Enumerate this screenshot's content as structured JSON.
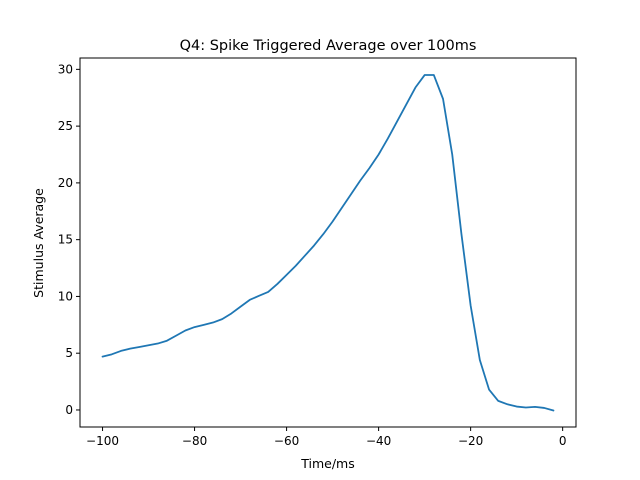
{
  "chart_data": {
    "type": "line",
    "title": "Q4: Spike Triggered Average over 100ms",
    "xlabel": "Time/ms",
    "ylabel": "Stimulus Average",
    "xlim": [
      -104.9,
      2.9
    ],
    "ylim": [
      -1.5,
      31.0
    ],
    "xticks": [
      -100,
      -80,
      -60,
      -40,
      -20,
      0
    ],
    "xtick_labels": [
      "−100",
      "−80",
      "−60",
      "−40",
      "−20",
      "0"
    ],
    "yticks": [
      0,
      5,
      10,
      15,
      20,
      25,
      30
    ],
    "ytick_labels": [
      "0",
      "5",
      "10",
      "15",
      "20",
      "25",
      "30"
    ],
    "grid": false,
    "line_color": "#1f77b4",
    "x": [
      -100,
      -98,
      -96,
      -94,
      -92,
      -90,
      -88,
      -86,
      -84,
      -82,
      -80,
      -78,
      -76,
      -74,
      -72,
      -70,
      -68,
      -66,
      -64,
      -62,
      -60,
      -58,
      -56,
      -54,
      -52,
      -50,
      -48,
      -46,
      -44,
      -42,
      -40,
      -38,
      -36,
      -34,
      -32,
      -30,
      -28,
      -26,
      -24,
      -22,
      -20,
      -18,
      -16,
      -14,
      -12,
      -10,
      -8,
      -6,
      -4,
      -2
    ],
    "y": [
      4.7,
      4.9,
      5.2,
      5.4,
      5.55,
      5.7,
      5.85,
      6.1,
      6.55,
      7.0,
      7.3,
      7.5,
      7.7,
      8.0,
      8.5,
      9.1,
      9.7,
      10.05,
      10.4,
      11.1,
      11.9,
      12.7,
      13.6,
      14.5,
      15.5,
      16.6,
      17.8,
      19.0,
      20.2,
      21.3,
      22.5,
      23.9,
      25.4,
      26.9,
      28.4,
      29.5,
      29.5,
      27.4,
      22.5,
      15.5,
      9.2,
      4.4,
      1.8,
      0.8,
      0.5,
      0.3,
      0.22,
      0.27,
      0.18,
      -0.05
    ]
  }
}
